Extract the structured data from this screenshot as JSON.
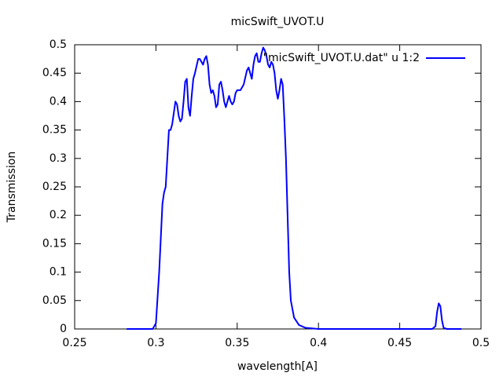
{
  "chart_data": {
    "type": "line",
    "title": "micSwift_UVOT.U",
    "x_label": "wavelength[A]",
    "y_label": "Transmission",
    "legend": "top right",
    "x": [
      0.282,
      0.298,
      0.3,
      0.302,
      0.304,
      0.305,
      0.306,
      0.307,
      0.308,
      0.309,
      0.31,
      0.311,
      0.312,
      0.313,
      0.314,
      0.315,
      0.316,
      0.317,
      0.318,
      0.319,
      0.32,
      0.321,
      0.322,
      0.323,
      0.324,
      0.326,
      0.327,
      0.328,
      0.329,
      0.33,
      0.331,
      0.332,
      0.333,
      0.334,
      0.335,
      0.336,
      0.337,
      0.338,
      0.339,
      0.34,
      0.341,
      0.342,
      0.343,
      0.344,
      0.345,
      0.346,
      0.347,
      0.348,
      0.349,
      0.35,
      0.352,
      0.354,
      0.356,
      0.357,
      0.358,
      0.359,
      0.36,
      0.361,
      0.362,
      0.363,
      0.364,
      0.365,
      0.366,
      0.367,
      0.368,
      0.369,
      0.37,
      0.371,
      0.372,
      0.373,
      0.374,
      0.375,
      0.376,
      0.377,
      0.378,
      0.379,
      0.38,
      0.381,
      0.382,
      0.383,
      0.385,
      0.388,
      0.392,
      0.4,
      0.47,
      0.472,
      0.473,
      0.474,
      0.475,
      0.476,
      0.477,
      0.479,
      0.488
    ],
    "series": [
      {
        "name": "\"micSwift_UVOT.U.dat\" u 1:2",
        "color": "#0000ff",
        "values": [
          0,
          0,
          0.01,
          0.1,
          0.22,
          0.24,
          0.25,
          0.3,
          0.35,
          0.35,
          0.36,
          0.38,
          0.4,
          0.395,
          0.375,
          0.365,
          0.37,
          0.4,
          0.435,
          0.44,
          0.39,
          0.375,
          0.41,
          0.44,
          0.45,
          0.475,
          0.475,
          0.47,
          0.465,
          0.475,
          0.48,
          0.465,
          0.43,
          0.415,
          0.42,
          0.41,
          0.39,
          0.395,
          0.43,
          0.435,
          0.42,
          0.4,
          0.39,
          0.4,
          0.41,
          0.4,
          0.395,
          0.4,
          0.415,
          0.42,
          0.42,
          0.43,
          0.455,
          0.46,
          0.45,
          0.44,
          0.465,
          0.48,
          0.485,
          0.47,
          0.47,
          0.485,
          0.495,
          0.49,
          0.48,
          0.465,
          0.46,
          0.47,
          0.465,
          0.45,
          0.42,
          0.405,
          0.42,
          0.44,
          0.43,
          0.37,
          0.3,
          0.2,
          0.1,
          0.05,
          0.02,
          0.007,
          0.002,
          0,
          0,
          0.005,
          0.03,
          0.045,
          0.04,
          0.015,
          0.002,
          0,
          0
        ]
      }
    ],
    "xlim": [
      0.25,
      0.5
    ],
    "xticks": [
      0.25,
      0.3,
      0.35,
      0.4,
      0.45,
      0.5
    ],
    "ylim": [
      0,
      0.5
    ],
    "yticks": [
      0,
      0.05,
      0.1,
      0.15,
      0.2,
      0.25,
      0.3,
      0.35,
      0.4,
      0.45,
      0.5
    ]
  }
}
